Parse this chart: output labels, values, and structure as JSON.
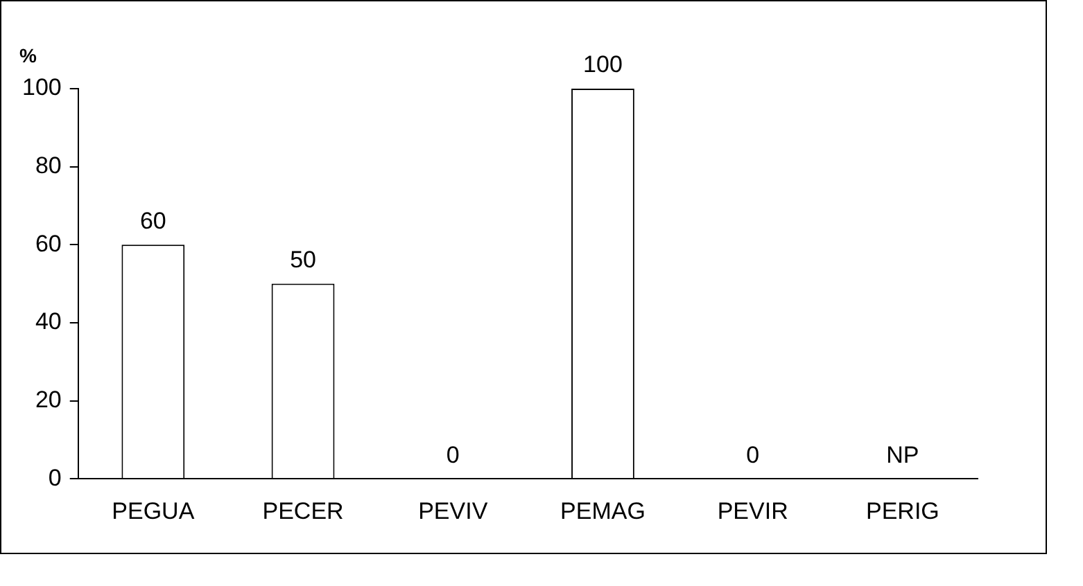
{
  "chart_data": {
    "type": "bar",
    "ylabel": "%",
    "categories": [
      "PEGUA",
      "PECER",
      "PEVIV",
      "PEMAG",
      "PEVIR",
      "PERIG"
    ],
    "values": [
      60,
      50,
      0,
      100,
      0,
      null
    ],
    "value_labels": [
      "60",
      "50",
      "0",
      "100",
      "0",
      "NP"
    ],
    "color": "#ffffff",
    "ylim": [
      0,
      100
    ],
    "yticks": [
      0,
      20,
      40,
      60,
      80,
      100
    ],
    "grid": false,
    "legend": false
  }
}
